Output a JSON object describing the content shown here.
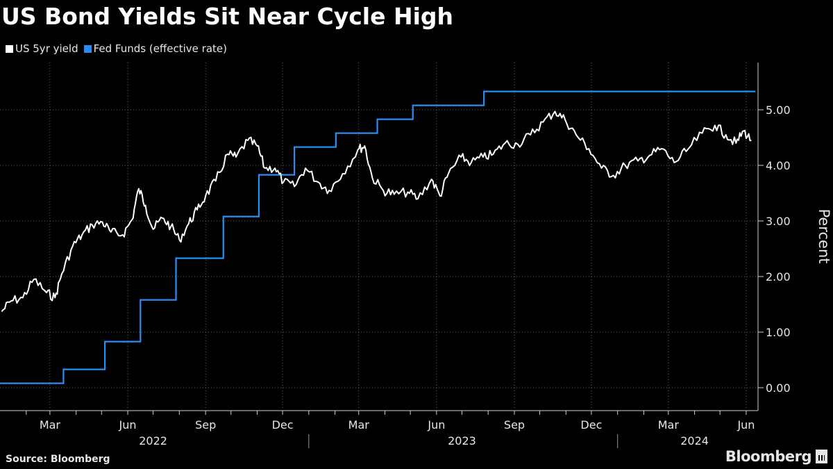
{
  "chart_data": {
    "type": "line",
    "title": "US Bond Yields Sit Near Cycle High",
    "ylabel": "Percent",
    "ylim": [
      -0.4,
      5.85
    ],
    "yticks": [
      0.0,
      1.0,
      2.0,
      3.0,
      4.0,
      5.0
    ],
    "ytick_labels": [
      "0.00",
      "1.00",
      "2.00",
      "3.00",
      "4.00",
      "5.00"
    ],
    "xlim": [
      "2022-01-01",
      "2024-06-15"
    ],
    "month_ticks": [
      {
        "date": "2022-03-01",
        "label": "Mar"
      },
      {
        "date": "2022-06-01",
        "label": "Jun"
      },
      {
        "date": "2022-09-01",
        "label": "Sep"
      },
      {
        "date": "2022-12-01",
        "label": "Dec"
      },
      {
        "date": "2023-03-01",
        "label": "Mar"
      },
      {
        "date": "2023-06-01",
        "label": "Jun"
      },
      {
        "date": "2023-09-01",
        "label": "Sep"
      },
      {
        "date": "2023-12-01",
        "label": "Dec"
      },
      {
        "date": "2024-03-01",
        "label": "Mar"
      },
      {
        "date": "2024-06-01",
        "label": "Jun"
      }
    ],
    "year_labels": [
      {
        "date": "2022-07-01",
        "label": "2022"
      },
      {
        "date": "2023-07-01",
        "label": "2023"
      },
      {
        "date": "2024-04-01",
        "label": "2024"
      }
    ],
    "year_separators": [
      "2023-01-01",
      "2024-01-01"
    ],
    "grid": true,
    "legend_position": "top-left",
    "series": [
      {
        "name": "US 5yr yield",
        "color": "#ffffff",
        "points": [
          [
            "2022-01-03",
            1.37
          ],
          [
            "2022-01-14",
            1.56
          ],
          [
            "2022-01-28",
            1.62
          ],
          [
            "2022-02-10",
            1.95
          ],
          [
            "2022-02-25",
            1.71
          ],
          [
            "2022-03-07",
            1.62
          ],
          [
            "2022-03-15",
            2.05
          ],
          [
            "2022-03-28",
            2.55
          ],
          [
            "2022-04-08",
            2.75
          ],
          [
            "2022-04-20",
            2.93
          ],
          [
            "2022-05-02",
            2.98
          ],
          [
            "2022-05-12",
            2.8
          ],
          [
            "2022-05-26",
            2.75
          ],
          [
            "2022-06-06",
            3.02
          ],
          [
            "2022-06-14",
            3.58
          ],
          [
            "2022-06-22",
            3.28
          ],
          [
            "2022-07-01",
            2.85
          ],
          [
            "2022-07-12",
            3.05
          ],
          [
            "2022-07-22",
            2.9
          ],
          [
            "2022-08-01",
            2.66
          ],
          [
            "2022-08-12",
            2.95
          ],
          [
            "2022-08-22",
            3.2
          ],
          [
            "2022-09-01",
            3.45
          ],
          [
            "2022-09-13",
            3.72
          ],
          [
            "2022-09-27",
            4.2
          ],
          [
            "2022-10-07",
            4.15
          ],
          [
            "2022-10-21",
            4.45
          ],
          [
            "2022-11-01",
            4.35
          ],
          [
            "2022-11-10",
            3.95
          ],
          [
            "2022-11-22",
            3.95
          ],
          [
            "2022-12-02",
            3.7
          ],
          [
            "2022-12-15",
            3.62
          ],
          [
            "2022-12-28",
            3.95
          ],
          [
            "2023-01-12",
            3.7
          ],
          [
            "2023-01-25",
            3.55
          ],
          [
            "2023-02-10",
            3.85
          ],
          [
            "2023-02-28",
            4.28
          ],
          [
            "2023-03-08",
            4.35
          ],
          [
            "2023-03-17",
            3.78
          ],
          [
            "2023-03-30",
            3.55
          ],
          [
            "2023-04-12",
            3.48
          ],
          [
            "2023-04-28",
            3.52
          ],
          [
            "2023-05-10",
            3.4
          ],
          [
            "2023-05-26",
            3.75
          ],
          [
            "2023-06-05",
            3.45
          ],
          [
            "2023-06-15",
            3.85
          ],
          [
            "2023-06-30",
            4.15
          ],
          [
            "2023-07-12",
            4.05
          ],
          [
            "2023-07-26",
            4.15
          ],
          [
            "2023-08-07",
            4.2
          ],
          [
            "2023-08-21",
            4.4
          ],
          [
            "2023-09-05",
            4.38
          ],
          [
            "2023-09-20",
            4.55
          ],
          [
            "2023-10-05",
            4.78
          ],
          [
            "2023-10-19",
            4.97
          ],
          [
            "2023-10-31",
            4.82
          ],
          [
            "2023-11-13",
            4.55
          ],
          [
            "2023-11-28",
            4.3
          ],
          [
            "2023-12-13",
            3.95
          ],
          [
            "2023-12-27",
            3.82
          ],
          [
            "2024-01-10",
            4.0
          ],
          [
            "2024-01-25",
            4.08
          ],
          [
            "2024-02-08",
            4.18
          ],
          [
            "2024-02-22",
            4.3
          ],
          [
            "2024-03-08",
            4.05
          ],
          [
            "2024-03-22",
            4.25
          ],
          [
            "2024-04-10",
            4.58
          ],
          [
            "2024-04-25",
            4.72
          ],
          [
            "2024-05-08",
            4.55
          ],
          [
            "2024-05-20",
            4.4
          ],
          [
            "2024-05-29",
            4.62
          ],
          [
            "2024-06-07",
            4.45
          ]
        ]
      },
      {
        "name": "Fed Funds (effective rate)",
        "color": "#2a8df5",
        "steps": [
          [
            "2022-01-01",
            0.08
          ],
          [
            "2022-03-17",
            0.33
          ],
          [
            "2022-05-05",
            0.83
          ],
          [
            "2022-06-16",
            1.58
          ],
          [
            "2022-07-28",
            2.33
          ],
          [
            "2022-09-22",
            3.08
          ],
          [
            "2022-11-03",
            3.83
          ],
          [
            "2022-12-15",
            4.33
          ],
          [
            "2023-02-02",
            4.58
          ],
          [
            "2023-03-23",
            4.83
          ],
          [
            "2023-05-04",
            5.08
          ],
          [
            "2023-07-27",
            5.33
          ],
          [
            "2024-06-12",
            5.33
          ]
        ]
      }
    ]
  },
  "footer": {
    "source": "Source: Bloomberg",
    "brand": "Bloomberg"
  }
}
